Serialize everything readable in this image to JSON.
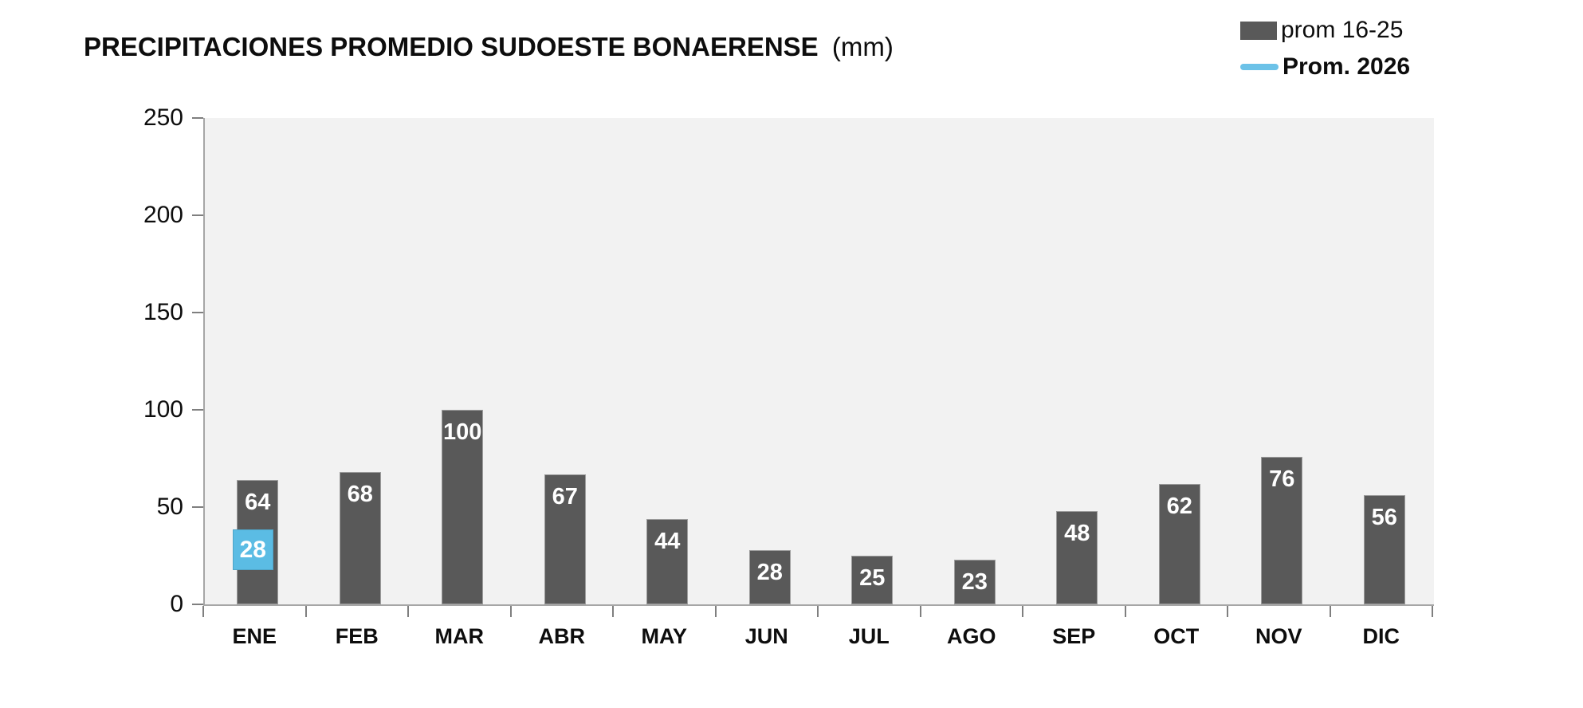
{
  "title": {
    "main": "PRECIPITACIONES PROMEDIO SUDOESTE BONAERENSE",
    "unit": "(mm)"
  },
  "legend": [
    {
      "label": "prom 16-25",
      "swatch": "bar",
      "color": "#595959",
      "bold": false
    },
    {
      "label": "Prom. 2026",
      "swatch": "line",
      "color": "#6CC2E8",
      "bold": true
    }
  ],
  "chart_data": {
    "type": "bar",
    "title": "PRECIPITACIONES PROMEDIO SUDOESTE BONAERENSE (mm)",
    "categories": [
      "ENE",
      "FEB",
      "MAR",
      "ABR",
      "MAY",
      "JUN",
      "JUL",
      "AGO",
      "SEP",
      "OCT",
      "NOV",
      "DIC"
    ],
    "series": [
      {
        "name": "prom 16-25",
        "type": "bar",
        "color": "#595959",
        "values": [
          64,
          68,
          100,
          67,
          44,
          28,
          25,
          23,
          48,
          62,
          76,
          56
        ]
      },
      {
        "name": "Prom. 2026",
        "type": "line",
        "color": "#5BBCE4",
        "marker": "square",
        "values": [
          28,
          null,
          null,
          null,
          null,
          null,
          null,
          null,
          null,
          null,
          null,
          null
        ]
      }
    ],
    "xlabel": "",
    "ylabel": "",
    "ylim": [
      0,
      250
    ],
    "yticks": [
      0,
      50,
      100,
      150,
      200,
      250
    ],
    "grid": false,
    "legend_position": "top-right",
    "plot_background": "#f2f2f2",
    "axis_color": "#a6a6a6",
    "value_label_color": "#ffffff"
  }
}
